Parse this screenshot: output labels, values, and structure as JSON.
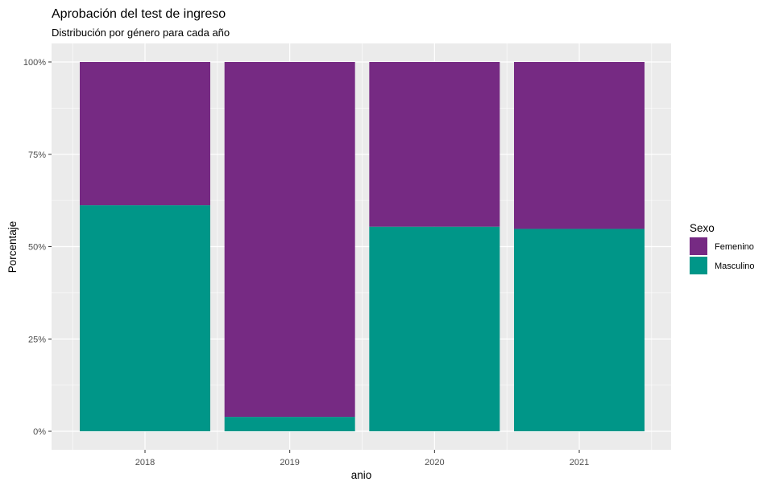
{
  "chart_data": {
    "type": "bar",
    "stacked": "percent",
    "title": "Aprobación del test de ingreso",
    "subtitle": "Distribución por género para cada año",
    "xlabel": "anio",
    "ylabel": "Porcentaje",
    "categories": [
      "2018",
      "2019",
      "2020",
      "2021"
    ],
    "ylim": [
      0,
      1
    ],
    "y_ticks": [
      0,
      0.25,
      0.5,
      0.75,
      1
    ],
    "y_tick_labels": [
      "0%",
      "25%",
      "50%",
      "75%",
      "100%"
    ],
    "series": [
      {
        "name": "Femenino",
        "color": "#762a83",
        "values": [
          0.388,
          0.961,
          0.446,
          0.452
        ]
      },
      {
        "name": "Masculino",
        "color": "#009688",
        "values": [
          0.612,
          0.039,
          0.554,
          0.548
        ]
      }
    ],
    "stack_order": [
      "Masculino",
      "Femenino"
    ],
    "legend": {
      "title": "Sexo",
      "position": "right"
    },
    "grid": true,
    "panel_background": "#ebebeb",
    "grid_color": "#ffffff"
  }
}
